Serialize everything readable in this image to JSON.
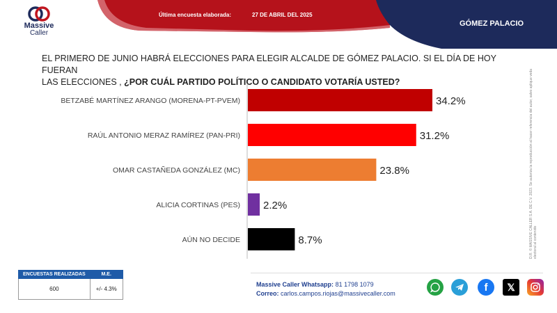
{
  "header": {
    "logo_line1": "Massive",
    "logo_line2": "Caller",
    "survey_label": "Última encuesta elaborada:",
    "survey_date": "27 DE ABRIL DEL 2025",
    "region": "GÓMEZ PALACIO"
  },
  "question": {
    "line1": "EL PRIMERO DE JUNIO HABRÁ ELECCIONES PARA ELEGIR ALCALDE DE GÓMEZ PALACIO.  SI EL DÍA DE HOY FUERAN",
    "line2_plain": "LAS ELECCIONES , ",
    "line2_bold": "¿POR CUÁL PARTIDO POLÍTICO O CANDIDATO VOTARÍA USTED?"
  },
  "chart_data": {
    "type": "bar",
    "orientation": "horizontal",
    "categories": [
      "BETZABÉ MARTÍNEZ ARANGO (MORENA-PT-PVEM)",
      "RAÚL ANTONIO MERAZ RAMÍREZ (PAN-PRI)",
      "OMAR CASTAÑEDA GONZÁLEZ (MC)",
      "ALICIA CORTINAS (PES)",
      "AÚN NO DECIDE"
    ],
    "values": [
      34.2,
      31.2,
      23.8,
      2.2,
      8.7
    ],
    "value_labels": [
      "34.2%",
      "31.2%",
      "23.8%",
      "2.2%",
      "8.7%"
    ],
    "colors": [
      "#c00000",
      "#ff0000",
      "#ed7d31",
      "#7030a0",
      "#000000"
    ],
    "xlim": [
      0,
      40
    ],
    "grid": false,
    "legend": "none"
  },
  "legal": "D.R. © MASSIVE CALLER S.A. DE C.V. 2023. Se autoriza la reproducción al hacer referencia del autor, salvo aplique veda electoral al contenido",
  "stats_table": {
    "headers": [
      "ENCUESTAS REALIZADAS",
      "M.E."
    ],
    "values": [
      "600",
      "+/- 4.3%"
    ]
  },
  "footer": {
    "whatsapp_label": "Massive Caller Whatsapp:",
    "whatsapp_number": "81 1798 1079",
    "email_label": "Correo:",
    "email": "carlos.campos.riojas@massivecaller.com"
  },
  "social_icons": [
    "whatsapp-icon",
    "telegram-icon",
    "facebook-icon",
    "x-icon",
    "instagram-icon"
  ],
  "colors": {
    "header_red": "#b5121b",
    "header_navy": "#1d2a5b",
    "table_blue": "#1f5ba8"
  }
}
